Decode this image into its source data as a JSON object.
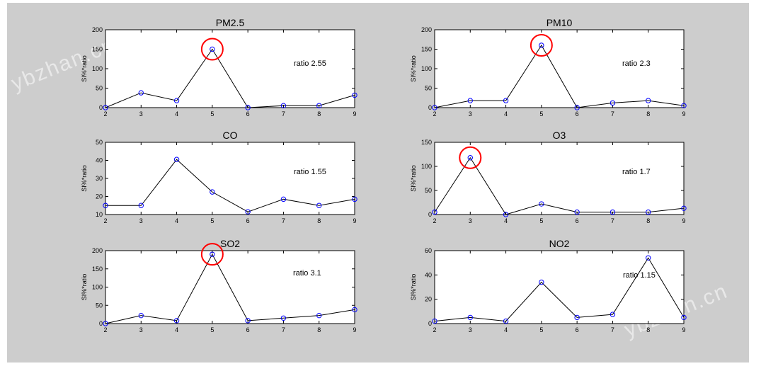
{
  "watermark": "ybzhan.cn",
  "colors": {
    "figure_bg": "#cdcdcd",
    "axes_bg": "#ffffff",
    "line": "#000000",
    "marker": "#0000ff",
    "highlight": "#ff0000"
  },
  "chart_data": [
    {
      "type": "line",
      "title": "PM2.5",
      "ylabel": "SI%*ratio",
      "annotation": "ratio 2.55",
      "x": [
        2,
        3,
        4,
        5,
        6,
        7,
        8,
        9
      ],
      "values": [
        0,
        38,
        18,
        150,
        0,
        5,
        5,
        32
      ],
      "ylim": [
        0,
        200
      ],
      "yticks": [
        0,
        50,
        100,
        150,
        200
      ],
      "xticks": [
        2,
        3,
        4,
        5,
        6,
        7,
        8,
        9
      ],
      "highlight_x": 5
    },
    {
      "type": "line",
      "title": "PM10",
      "ylabel": "SI%*ratio",
      "annotation": "ratio 2.3",
      "x": [
        2,
        3,
        4,
        5,
        6,
        7,
        8,
        9
      ],
      "values": [
        0,
        18,
        18,
        160,
        0,
        12,
        18,
        5
      ],
      "ylim": [
        0,
        200
      ],
      "yticks": [
        0,
        50,
        100,
        150,
        200
      ],
      "xticks": [
        2,
        3,
        4,
        5,
        6,
        7,
        8,
        9
      ],
      "highlight_x": 5
    },
    {
      "type": "line",
      "title": "CO",
      "ylabel": "SI%*ratio",
      "annotation": "ratio 1.55",
      "x": [
        2,
        3,
        4,
        5,
        6,
        7,
        8,
        9
      ],
      "values": [
        15,
        15,
        40.5,
        22.5,
        11.5,
        18.5,
        15,
        18.5
      ],
      "ylim": [
        10,
        50
      ],
      "yticks": [
        10,
        20,
        30,
        40,
        50
      ],
      "xticks": [
        2,
        3,
        4,
        5,
        6,
        7,
        8,
        9
      ],
      "highlight_x": null
    },
    {
      "type": "line",
      "title": "O3",
      "ylabel": "SI%*ratio",
      "annotation": "ratio 1.7",
      "x": [
        2,
        3,
        4,
        5,
        6,
        7,
        8,
        9
      ],
      "values": [
        5,
        118,
        0,
        22,
        5,
        5,
        5,
        13
      ],
      "ylim": [
        0,
        150
      ],
      "yticks": [
        0,
        50,
        100,
        150
      ],
      "xticks": [
        2,
        3,
        4,
        5,
        6,
        7,
        8,
        9
      ],
      "highlight_x": 3
    },
    {
      "type": "line",
      "title": "SO2",
      "ylabel": "SI%*ratio",
      "annotation": "ratio 3.1",
      "x": [
        2,
        3,
        4,
        5,
        6,
        7,
        8,
        9
      ],
      "values": [
        0,
        22,
        8,
        190,
        8,
        15,
        22,
        38
      ],
      "ylim": [
        0,
        200
      ],
      "yticks": [
        0,
        50,
        100,
        150,
        200
      ],
      "xticks": [
        2,
        3,
        4,
        5,
        6,
        7,
        8,
        9
      ],
      "highlight_x": 5
    },
    {
      "type": "line",
      "title": "NO2",
      "ylabel": "SI%*ratio",
      "annotation": "ratio 1.15",
      "x": [
        2,
        3,
        4,
        5,
        6,
        7,
        8,
        9
      ],
      "values": [
        2,
        5,
        2,
        34,
        5,
        7.5,
        54,
        5
      ],
      "ylim": [
        0,
        60
      ],
      "yticks": [
        0,
        20,
        40,
        60
      ],
      "xticks": [
        2,
        3,
        4,
        5,
        6,
        7,
        8,
        9
      ],
      "highlight_x": null
    }
  ]
}
